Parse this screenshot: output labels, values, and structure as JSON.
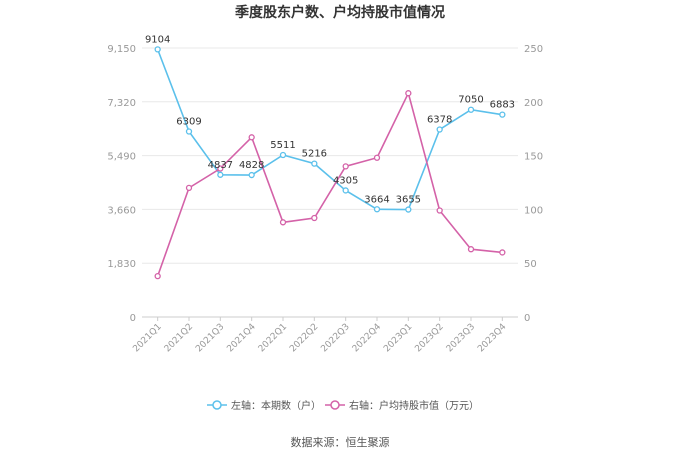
{
  "chart_data": {
    "type": "line",
    "title": "季度股东户数、户均持股市值情况",
    "categories": [
      "2021Q1",
      "2021Q2",
      "2021Q3",
      "2021Q4",
      "2022Q1",
      "2022Q2",
      "2022Q3",
      "2022Q4",
      "2023Q1",
      "2023Q2",
      "2023Q3",
      "2023Q4"
    ],
    "left_axis": {
      "ticks": [
        "9,150",
        "7,320",
        "5,490",
        "3,660",
        "1,830",
        "0"
      ],
      "ylim": [
        0,
        9150
      ]
    },
    "right_axis": {
      "ticks": [
        "250",
        "200",
        "150",
        "100",
        "50",
        "0"
      ],
      "ylim": [
        0,
        250
      ]
    },
    "series": [
      {
        "name": "左轴：本期数（户）",
        "axis": "left",
        "color": "#5bc0eb",
        "values": [
          9104,
          6309,
          4837,
          4828,
          5511,
          5216,
          4305,
          3664,
          3655,
          6378,
          7050,
          6883
        ],
        "labels": [
          "9104",
          "6309",
          "4837",
          "4828",
          "5511",
          "5216",
          "4305",
          "3664",
          "3655",
          "6378",
          "7050",
          "6883"
        ]
      },
      {
        "name": "右轴：户均持股市值（万元）",
        "axis": "right",
        "color": "#d462a8",
        "values": [
          38,
          120,
          138,
          167,
          88,
          92,
          140,
          148,
          208,
          99,
          63,
          60
        ]
      }
    ],
    "legend_position": "bottom",
    "grid": true
  },
  "footer": {
    "source": "数据来源：恒生聚源"
  }
}
